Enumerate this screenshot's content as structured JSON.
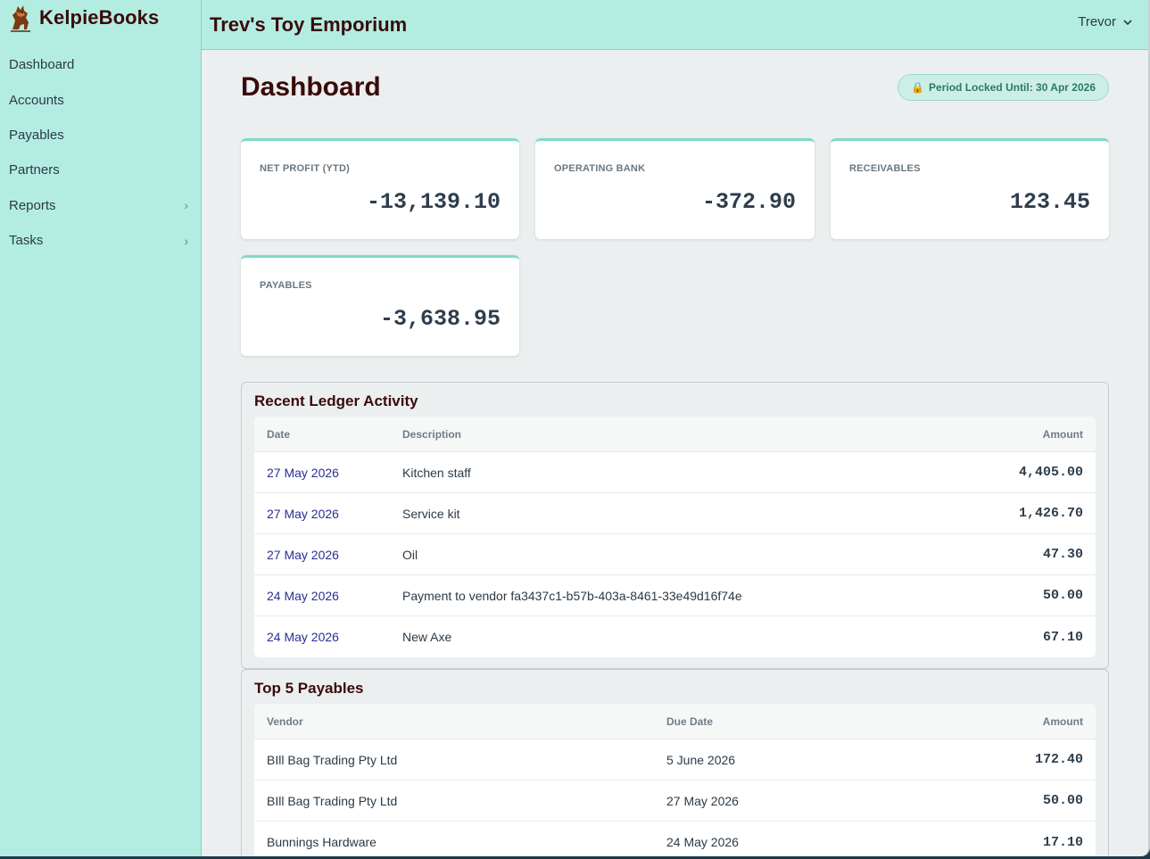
{
  "app": {
    "name": "KelpieBooks"
  },
  "sidebar": {
    "items": [
      {
        "label": "Dashboard",
        "has_submenu": false
      },
      {
        "label": "Accounts",
        "has_submenu": false
      },
      {
        "label": "Payables",
        "has_submenu": false
      },
      {
        "label": "Partners",
        "has_submenu": false
      },
      {
        "label": "Reports",
        "has_submenu": true
      },
      {
        "label": "Tasks",
        "has_submenu": true
      }
    ],
    "chevron": "›"
  },
  "topbar": {
    "company": "Trev's Toy Emporium",
    "user": "Trevor"
  },
  "page": {
    "title": "Dashboard",
    "lock_badge": "Period Locked Until: 30 Apr 2026"
  },
  "kpis": [
    {
      "label": "NET PROFIT (YTD)",
      "value": "-13,139.10"
    },
    {
      "label": "OPERATING BANK",
      "value": "-372.90"
    },
    {
      "label": "RECEIVABLES",
      "value": "123.45"
    },
    {
      "label": "PAYABLES",
      "value": "-3,638.95"
    }
  ],
  "ledger": {
    "title": "Recent Ledger Activity",
    "headers": {
      "date": "Date",
      "description": "Description",
      "amount": "Amount"
    },
    "rows": [
      {
        "date": "27 May 2026",
        "description": "Kitchen staff",
        "amount": "4,405.00"
      },
      {
        "date": "27 May 2026",
        "description": "Service kit",
        "amount": "1,426.70"
      },
      {
        "date": "27 May 2026",
        "description": "Oil",
        "amount": "47.30"
      },
      {
        "date": "24 May 2026",
        "description": "Payment to vendor fa3437c1-b57b-403a-8461-33e49d16f74e",
        "amount": "50.00"
      },
      {
        "date": "24 May 2026",
        "description": "New Axe",
        "amount": "67.10"
      }
    ]
  },
  "payables": {
    "title": "Top 5 Payables",
    "headers": {
      "vendor": "Vendor",
      "due": "Due Date",
      "amount": "Amount"
    },
    "rows": [
      {
        "vendor": "BIll Bag Trading Pty Ltd",
        "due": "5 June 2026",
        "amount": "172.40"
      },
      {
        "vendor": "BIll Bag Trading Pty Ltd",
        "due": "27 May 2026",
        "amount": "50.00"
      },
      {
        "vendor": "Bunnings Hardware",
        "due": "24 May 2026",
        "amount": "17.10"
      }
    ]
  },
  "colors": {
    "sidebar_bg": "#b3ede2",
    "brand_text": "#3b0a0a",
    "kpi_accent": "#7fd9c8",
    "link": "#2a2f8f"
  },
  "icons": {
    "logo": "kelpie-dog-logo",
    "lock": "lock-icon",
    "user_menu": "chevron-down-icon"
  }
}
